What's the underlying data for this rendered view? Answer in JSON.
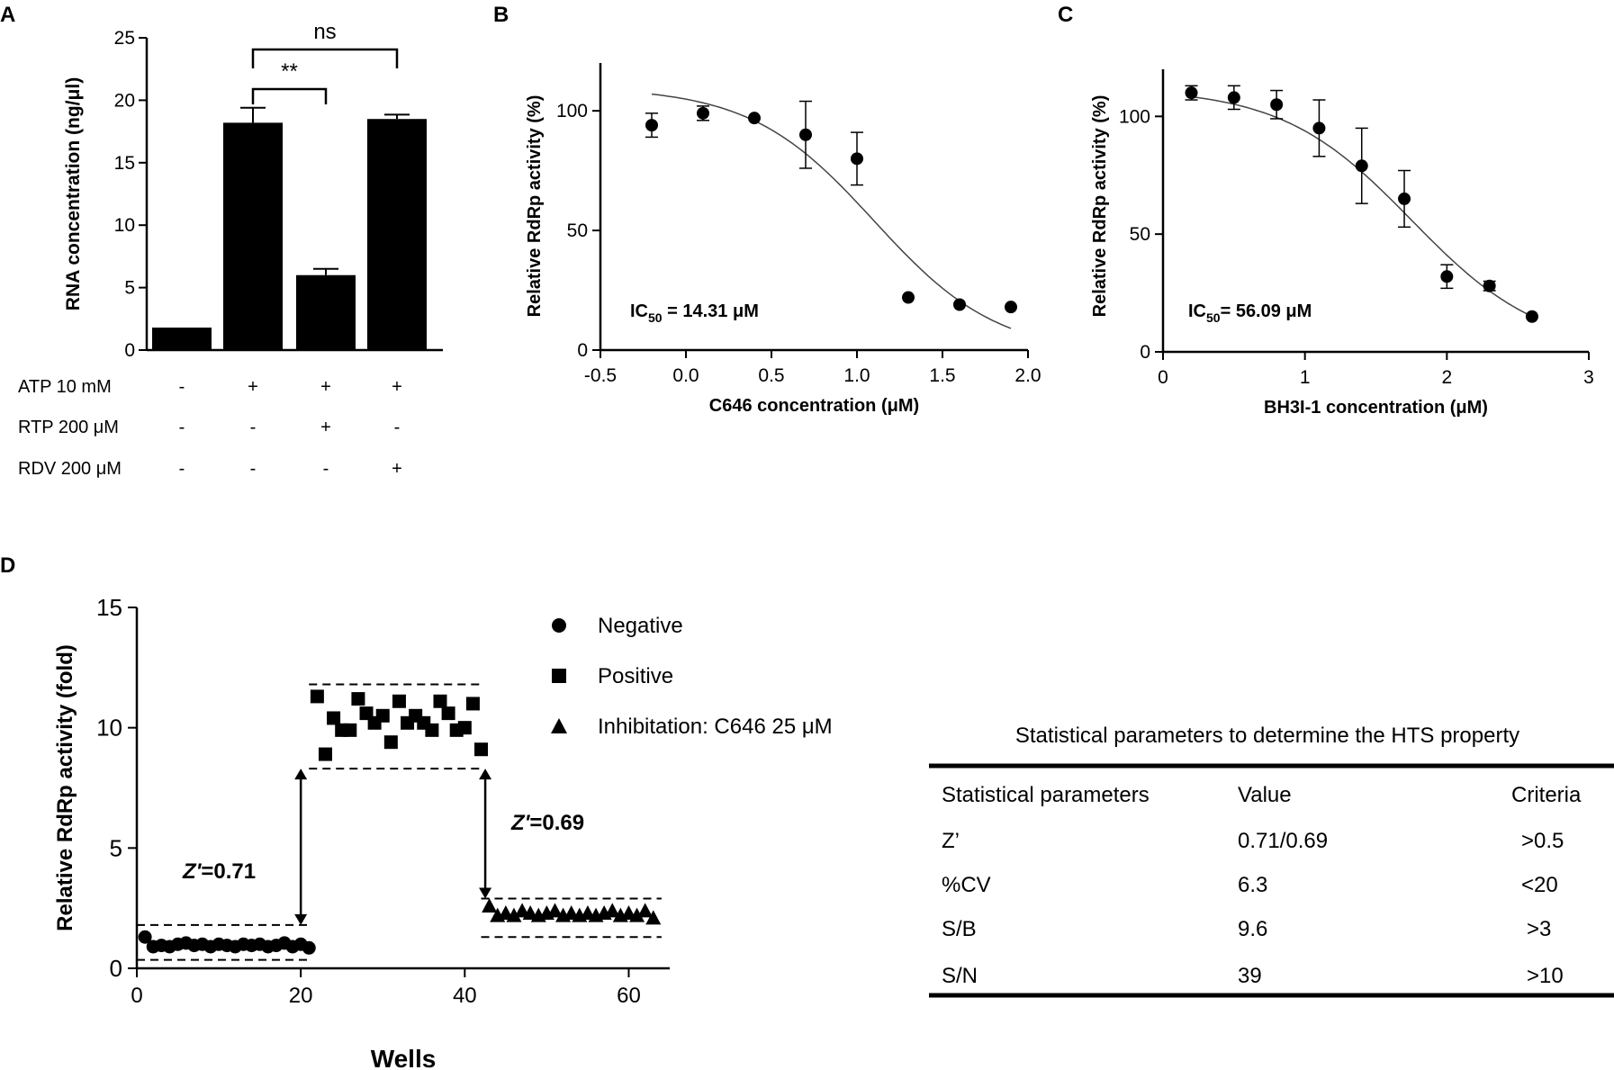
{
  "panels": {
    "a": {
      "letter": "A"
    },
    "b": {
      "letter": "B"
    },
    "c": {
      "letter": "C"
    },
    "d": {
      "letter": "D"
    }
  },
  "chart_data": [
    {
      "id": "A",
      "type": "bar",
      "title": "",
      "ylabel": "RNA concentration (ng/μl)",
      "ylim": [
        0,
        25
      ],
      "yticks": [
        "0",
        "5",
        "10",
        "15",
        "20",
        "25"
      ],
      "values": [
        1.8,
        18.2,
        6.0,
        18.5
      ],
      "errors": [
        0.05,
        1.2,
        0.5,
        0.35
      ],
      "conditions": [
        {
          "label": "ATP 10 mM",
          "signs": [
            "-",
            "+",
            "+",
            "+"
          ]
        },
        {
          "label": "RTP 200 μM",
          "signs": [
            "-",
            "-",
            "+",
            "-"
          ]
        },
        {
          "label": "RDV 200 μM",
          "signs": [
            "-",
            "-",
            "-",
            "+"
          ]
        }
      ],
      "significance": [
        {
          "label": "ns",
          "from_bar": 2,
          "to_bar": 4
        },
        {
          "label": "**",
          "from_bar": 2,
          "to_bar": 3
        }
      ]
    },
    {
      "id": "B",
      "type": "scatter",
      "xlabel": "C646 concentration (μM)",
      "ylabel": "Relative RdRp activity (%)",
      "xlim": [
        -0.5,
        2.0
      ],
      "ylim": [
        0,
        120
      ],
      "xticks": [
        "-0.5",
        "0.0",
        "0.5",
        "1.0",
        "1.5",
        "2.0"
      ],
      "yticks": [
        "0",
        "50",
        "100"
      ],
      "x": [
        -0.2,
        0.1,
        0.4,
        0.7,
        1.0,
        1.3,
        1.6,
        1.9
      ],
      "y": [
        94,
        99,
        97,
        90,
        80,
        22,
        19,
        18
      ],
      "err": [
        5,
        3,
        1,
        14,
        11,
        1,
        1,
        1
      ],
      "fit": {
        "top": 110,
        "bottom": -2,
        "logIC50": 1.1,
        "hill": 1.2,
        "x_range": [
          -0.2,
          1.9
        ]
      },
      "annotation": {
        "prefix": "IC",
        "subscript": "50",
        "suffix": " = 14.31 μM"
      }
    },
    {
      "id": "C",
      "type": "scatter",
      "xlabel": "BH3I-1 concentration (μM)",
      "ylabel": "Relative RdRp activity (%)",
      "xlim": [
        0,
        3
      ],
      "ylim": [
        0,
        120
      ],
      "xticks": [
        "0",
        "1",
        "2",
        "3"
      ],
      "yticks": [
        "0",
        "50",
        "100"
      ],
      "x": [
        0.2,
        0.5,
        0.8,
        1.1,
        1.4,
        1.7,
        2.0,
        2.3,
        2.6
      ],
      "y": [
        110,
        108,
        105,
        95,
        79,
        65,
        32,
        28,
        15
      ],
      "err": [
        3,
        5,
        6,
        12,
        16,
        12,
        5,
        2,
        1
      ],
      "fit": {
        "top": 112,
        "bottom": 0,
        "logIC50": 1.75,
        "hill": 0.95,
        "x_range": [
          0.2,
          2.6
        ]
      },
      "annotation": {
        "prefix": "IC",
        "subscript": "50",
        "suffix": "= 56.09 μM"
      }
    },
    {
      "id": "D",
      "type": "scatter",
      "xlabel": "Wells",
      "ylabel": "Relative RdRp activity (fold)",
      "xlim": [
        0,
        65
      ],
      "ylim": [
        0,
        15
      ],
      "xticks": [
        "0",
        "20",
        "40",
        "60"
      ],
      "yticks": [
        "0",
        "5",
        "10",
        "15"
      ],
      "series": [
        {
          "name": "Negative",
          "marker": "circle",
          "x": [
            1,
            2,
            3,
            4,
            5,
            6,
            7,
            8,
            9,
            10,
            11,
            12,
            13,
            14,
            15,
            16,
            17,
            18,
            19,
            20,
            21
          ],
          "y": [
            1.3,
            0.9,
            0.95,
            0.9,
            1.0,
            1.05,
            0.95,
            1.0,
            0.9,
            1.0,
            0.95,
            0.9,
            1.0,
            0.95,
            1.0,
            0.9,
            0.95,
            1.05,
            0.9,
            1.0,
            0.85
          ]
        },
        {
          "name": "Positive",
          "marker": "square",
          "x": [
            22,
            23,
            24,
            25,
            26,
            27,
            28,
            29,
            30,
            31,
            32,
            33,
            34,
            35,
            36,
            37,
            38,
            39,
            40,
            41,
            42
          ],
          "y": [
            11.3,
            8.9,
            10.4,
            9.9,
            9.9,
            11.2,
            10.6,
            10.2,
            10.5,
            9.4,
            11.1,
            10.2,
            10.5,
            10.2,
            9.9,
            11.1,
            10.6,
            9.9,
            10.0,
            11.0,
            9.1
          ]
        },
        {
          "name": "Inhibitation: C646 25 μM",
          "marker": "triangle",
          "x": [
            43,
            44,
            45,
            46,
            47,
            48,
            49,
            50,
            51,
            52,
            53,
            54,
            55,
            56,
            57,
            58,
            59,
            60,
            61,
            62,
            63
          ],
          "y": [
            2.6,
            2.2,
            2.3,
            2.2,
            2.4,
            2.3,
            2.2,
            2.3,
            2.4,
            2.2,
            2.3,
            2.2,
            2.3,
            2.2,
            2.3,
            2.4,
            2.2,
            2.3,
            2.2,
            2.4,
            2.1
          ]
        }
      ],
      "bands": [
        {
          "x_range": [
            0,
            21
          ],
          "lower": 0.35,
          "upper": 1.8
        },
        {
          "x_range": [
            21,
            42
          ],
          "lower": 8.3,
          "upper": 11.8
        },
        {
          "x_range": [
            42,
            64
          ],
          "lower": 1.3,
          "upper": 2.9
        }
      ],
      "arrows": [
        {
          "x": 20,
          "y_from": 1.8,
          "y_to": 8.3,
          "label_prefix": "Z'",
          "label_suffix": "=0.71"
        },
        {
          "x": 42.5,
          "y_from": 2.9,
          "y_to": 8.3,
          "label_prefix": "Z'",
          "label_suffix": "=0.69"
        }
      ]
    }
  ],
  "table": {
    "title": "Statistical parameters to determine the HTS property",
    "headers": [
      "Statistical parameters",
      "Value",
      "Criteria"
    ],
    "rows": [
      [
        "Z’",
        "0.71/0.69",
        ">0.5"
      ],
      [
        "%CV",
        "6.3",
        "<20"
      ],
      [
        "S/B",
        "9.6",
        ">3"
      ],
      [
        "S/N",
        "39",
        ">10"
      ]
    ]
  }
}
